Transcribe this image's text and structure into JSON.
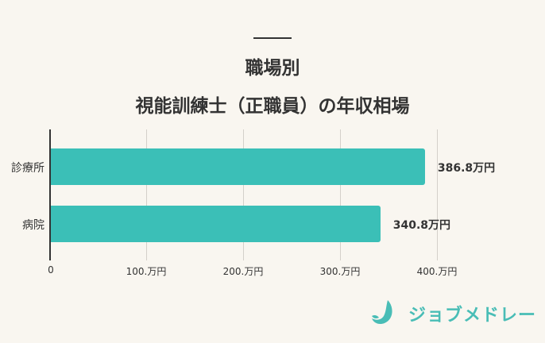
{
  "header": {
    "title_line1": "職場別",
    "title_line2": "視能訓練士（正職員）の年収相場"
  },
  "chart_data": {
    "type": "bar",
    "orientation": "horizontal",
    "title": "職場別 視能訓練士（正職員）の年収相場",
    "categories": [
      "診療所",
      "病院"
    ],
    "values": [
      386.8,
      340.8
    ],
    "value_labels": [
      "386.8万円",
      "340.8万円"
    ],
    "unit": "万円",
    "xlabel": "",
    "ylabel": "",
    "xlim": [
      0,
      400
    ],
    "xticks": [
      0,
      100,
      200,
      300,
      400
    ],
    "xtick_labels": [
      "0",
      "100.万円",
      "200.万円",
      "300.万円",
      "400.万円"
    ],
    "grid": true,
    "bar_color": "#3bbfb7"
  },
  "brand": {
    "name": "ジョブメドレー",
    "color": "#49bdb6",
    "icon": "jobmedley-logo-icon"
  }
}
